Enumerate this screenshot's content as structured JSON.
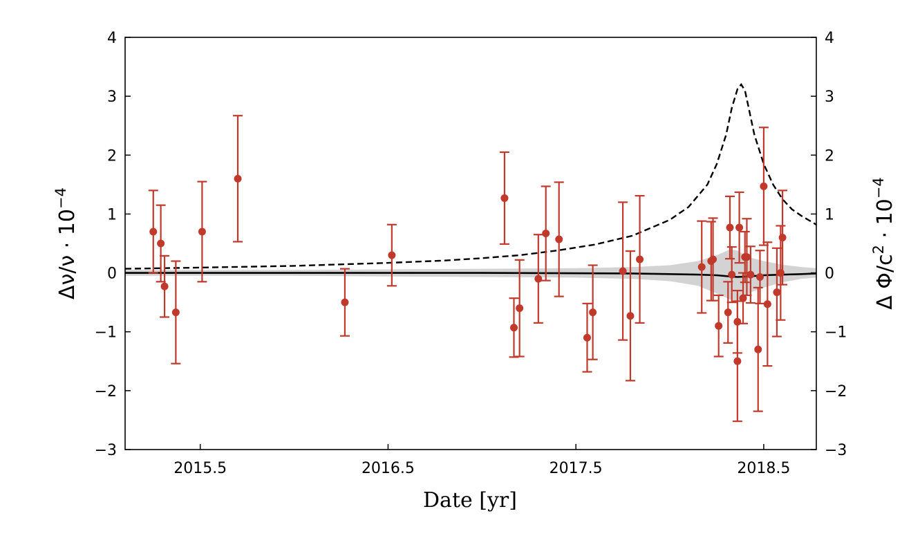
{
  "chart_data": {
    "type": "scatter",
    "title": "",
    "xlabel": "Date [yr]",
    "ylabel_left": "Δν/ν · 10",
    "ylabel_left_exp": "−4",
    "ylabel_right": "Δ Φ/c",
    "ylabel_right_sup": "2",
    "ylabel_right_tail": " · 10",
    "ylabel_right_exp": "−4",
    "xlim": [
      2015.1,
      2018.78
    ],
    "ylim": [
      -3,
      4
    ],
    "x_ticks": [
      2015.5,
      2016.5,
      2017.5,
      2018.5
    ],
    "x_tick_labels": [
      "2015.5",
      "2016.5",
      "2017.5",
      "2018.5"
    ],
    "y_ticks": [
      4,
      3,
      2,
      1,
      0,
      -1,
      -2,
      -3
    ],
    "y_tick_labels": [
      "4",
      "3",
      "2",
      "1",
      "0",
      "−1",
      "−2",
      "−3"
    ],
    "grid": false,
    "legend": "none",
    "colors": {
      "points": "#c0392b",
      "model": "#000000",
      "band": "#d3d3d3"
    },
    "series": [
      {
        "kind": "errorbar",
        "points": [
          {
            "x": 2015.25,
            "y": 0.7,
            "err": 0.7
          },
          {
            "x": 2015.29,
            "y": 0.5,
            "err": 0.65
          },
          {
            "x": 2015.31,
            "y": -0.23,
            "err": 0.52
          },
          {
            "x": 2015.37,
            "y": -0.67,
            "err": 0.87
          },
          {
            "x": 2015.51,
            "y": 0.7,
            "err": 0.85
          },
          {
            "x": 2015.7,
            "y": 1.6,
            "err": 1.07
          },
          {
            "x": 2016.27,
            "y": -0.5,
            "err": 0.57
          },
          {
            "x": 2016.52,
            "y": 0.3,
            "err": 0.52
          },
          {
            "x": 2017.12,
            "y": 1.27,
            "err": 0.78
          },
          {
            "x": 2017.17,
            "y": -0.93,
            "err": 0.5
          },
          {
            "x": 2017.2,
            "y": -0.6,
            "err": 0.82
          },
          {
            "x": 2017.3,
            "y": -0.1,
            "err": 0.75
          },
          {
            "x": 2017.34,
            "y": 0.67,
            "err": 0.8
          },
          {
            "x": 2017.41,
            "y": 0.57,
            "err": 0.97
          },
          {
            "x": 2017.56,
            "y": -1.1,
            "err": 0.58
          },
          {
            "x": 2017.59,
            "y": -0.67,
            "err": 0.8
          },
          {
            "x": 2017.75,
            "y": 0.03,
            "err": 1.17
          },
          {
            "x": 2017.79,
            "y": -0.73,
            "err": 1.1
          },
          {
            "x": 2017.84,
            "y": 0.23,
            "err": 1.08
          },
          {
            "x": 2018.17,
            "y": 0.1,
            "err": 0.78
          },
          {
            "x": 2018.22,
            "y": 0.2,
            "err": 0.67
          },
          {
            "x": 2018.23,
            "y": 0.23,
            "err": 0.7
          },
          {
            "x": 2018.26,
            "y": -0.9,
            "err": 0.52
          },
          {
            "x": 2018.31,
            "y": -0.67,
            "err": 0.52
          },
          {
            "x": 2018.32,
            "y": 0.77,
            "err": 0.53
          },
          {
            "x": 2018.33,
            "y": -0.03,
            "err": 0.47
          },
          {
            "x": 2018.36,
            "y": -0.83,
            "err": 0.53
          },
          {
            "x": 2018.36,
            "y": -1.5,
            "err": 1.02
          },
          {
            "x": 2018.37,
            "y": 0.77,
            "err": 0.6
          },
          {
            "x": 2018.39,
            "y": -0.43,
            "err": 0.43
          },
          {
            "x": 2018.4,
            "y": 0.27,
            "err": 0.43
          },
          {
            "x": 2018.41,
            "y": 0.27,
            "err": 0.65
          },
          {
            "x": 2018.43,
            "y": -0.03,
            "err": 0.48
          },
          {
            "x": 2018.47,
            "y": -1.3,
            "err": 1.05
          },
          {
            "x": 2018.48,
            "y": -0.07,
            "err": 0.45
          },
          {
            "x": 2018.5,
            "y": 1.47,
            "err": 1.0
          },
          {
            "x": 2018.52,
            "y": -0.53,
            "err": 1.05
          },
          {
            "x": 2018.57,
            "y": -0.33,
            "err": 0.75
          },
          {
            "x": 2018.59,
            "y": 0.0,
            "err": 0.8
          },
          {
            "x": 2018.6,
            "y": 0.6,
            "err": 0.8
          }
        ]
      },
      {
        "kind": "dashed-line",
        "x": [
          2015.1,
          2015.5,
          2016.0,
          2016.5,
          2016.8,
          2017.0,
          2017.2,
          2017.4,
          2017.6,
          2017.8,
          2018.0,
          2018.1,
          2018.2,
          2018.25,
          2018.3,
          2018.33,
          2018.36,
          2018.38,
          2018.4,
          2018.42,
          2018.45,
          2018.5,
          2018.55,
          2018.6,
          2018.65,
          2018.7,
          2018.78
        ],
        "y": [
          0.07,
          0.09,
          0.12,
          0.17,
          0.21,
          0.25,
          0.3,
          0.38,
          0.48,
          0.63,
          0.9,
          1.12,
          1.5,
          1.85,
          2.35,
          2.8,
          3.12,
          3.2,
          3.1,
          2.8,
          2.35,
          1.85,
          1.5,
          1.25,
          1.08,
          0.97,
          0.82
        ]
      },
      {
        "kind": "solid-line",
        "x": [
          2015.1,
          2016.0,
          2017.0,
          2017.8,
          2018.0,
          2018.15,
          2018.25,
          2018.32,
          2018.36,
          2018.42,
          2018.5,
          2018.6,
          2018.7,
          2018.78
        ],
        "y": [
          0.0,
          0.0,
          0.0,
          -0.01,
          -0.02,
          -0.03,
          -0.04,
          -0.06,
          -0.07,
          -0.06,
          -0.04,
          -0.03,
          -0.02,
          -0.01
        ]
      },
      {
        "kind": "band",
        "x": [
          2015.1,
          2016.0,
          2016.5,
          2017.0,
          2017.5,
          2017.8,
          2018.0,
          2018.15,
          2018.25,
          2018.32,
          2018.36,
          2018.4,
          2018.44,
          2018.5,
          2018.6,
          2018.7,
          2018.78
        ],
        "upper": [
          0.05,
          0.05,
          0.06,
          0.07,
          0.08,
          0.1,
          0.13,
          0.2,
          0.3,
          0.4,
          0.38,
          0.3,
          0.25,
          0.2,
          0.14,
          0.1,
          0.08
        ],
        "lower": [
          -0.05,
          -0.05,
          -0.06,
          -0.07,
          -0.08,
          -0.1,
          -0.14,
          -0.22,
          -0.35,
          -0.45,
          -0.48,
          -0.4,
          -0.32,
          -0.25,
          -0.16,
          -0.1,
          -0.08
        ]
      }
    ]
  }
}
